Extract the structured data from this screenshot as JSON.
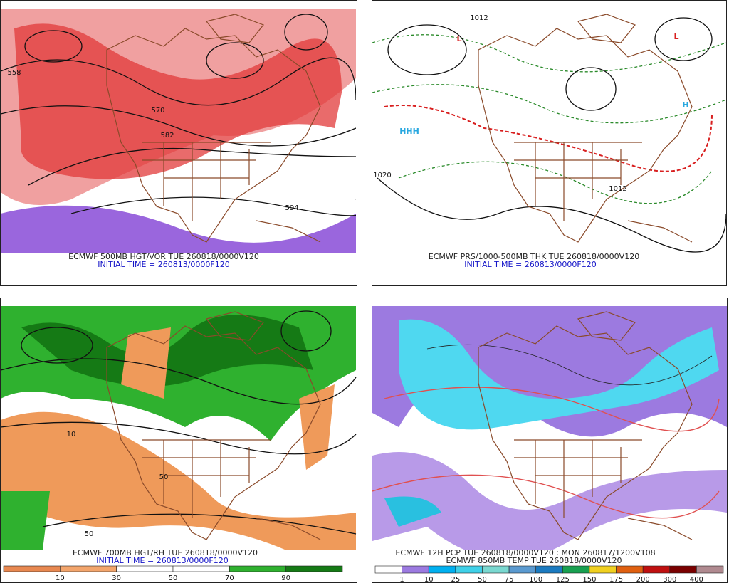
{
  "panels": [
    {
      "caption": "ECMWF 500MB HGT/VOR TUE 260818/0000V120",
      "initial_time": "INITIAL TIME = 260813/0000F120",
      "labels": [
        "558",
        "570",
        "582",
        "594"
      ]
    },
    {
      "caption": "ECMWF PRS/1000-500MB THK TUE 260818/0000V120",
      "initial_time": "INITIAL TIME = 260813/0000F120",
      "labels": [
        "L",
        "L",
        "HHH",
        "H",
        "1012",
        "1020",
        "1012"
      ]
    },
    {
      "caption": "ECMWF 700MB HGT/RH TUE 260818/0000V120",
      "initial_time": "INITIAL TIME = 260813/0000F120",
      "labels": [
        "10",
        "50",
        "50"
      ],
      "legend": {
        "colors": [
          "#e88850",
          "#f3a56c",
          "#ffffff",
          "#ffffff",
          "#2fb12f",
          "#157a15"
        ],
        "ticks": [
          10,
          30,
          50,
          70,
          90
        ]
      }
    },
    {
      "caption": "ECMWF 12H PCP TUE 260818/0000V120 : MON 260817/1200V108",
      "initial_time": "ECMWF 850MB TEMP TUE 260818/0000V120",
      "legend": {
        "colors": [
          "#ffffff",
          "#9c7ae0",
          "#00b0f0",
          "#3fd0e8",
          "#7ad8d0",
          "#5a9ad0",
          "#1a7ac0",
          "#18a050",
          "#f0d020",
          "#e06010",
          "#c01010",
          "#7a0000",
          "#b08a90"
        ],
        "ticks": [
          1,
          10,
          25,
          50,
          75,
          100,
          125,
          150,
          175,
          200,
          300,
          400
        ]
      }
    }
  ]
}
